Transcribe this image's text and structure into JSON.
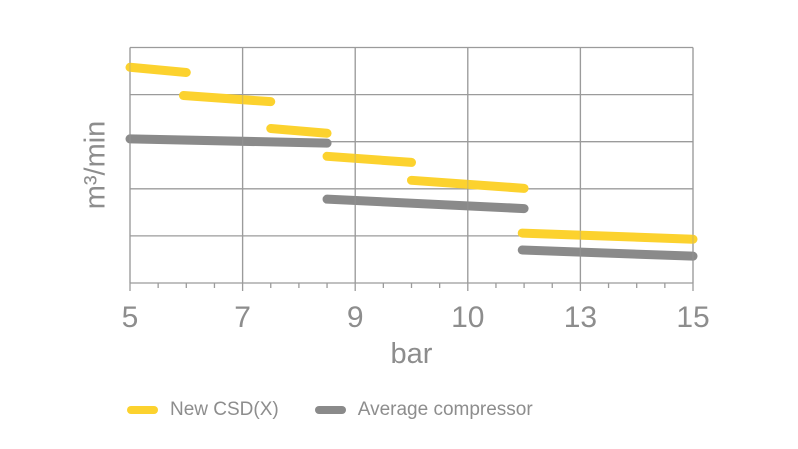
{
  "chart_data": {
    "type": "line",
    "title": "",
    "xlabel": "bar",
    "ylabel": "m³/min",
    "x_tick_labels": [
      "5",
      "7",
      "9",
      "10",
      "13",
      "15"
    ],
    "x_tick_values": [
      5,
      7,
      9,
      10,
      13,
      15
    ],
    "x_minor_divisions": 4,
    "y_gridline_rows": 5,
    "y_axis_numeric_labels": false,
    "y_units_note": "y values are in unlabeled gridline units, 0 = bottom axis, 5 = top border",
    "grid": true,
    "legend_position": "bottom",
    "colors": {
      "background": "#ffffff",
      "grid": "#9b9b9b",
      "text": "#8d8d8d",
      "accent_yellow": "#FCD22E",
      "series_gray": "#8a8a8a"
    },
    "series": [
      {
        "name": "New CSD(X)",
        "color": "#FCD22E",
        "segments": [
          {
            "x": [
              5.0,
              6.0
            ],
            "y": [
              4.58,
              4.47
            ]
          },
          {
            "x": [
              5.95,
              7.5
            ],
            "y": [
              3.98,
              3.85
            ]
          },
          {
            "x": [
              7.5,
              8.5
            ],
            "y": [
              3.28,
              3.18
            ]
          },
          {
            "x": [
              8.5,
              9.5
            ],
            "y": [
              2.69,
              2.56
            ]
          },
          {
            "x": [
              9.5,
              11.5
            ],
            "y": [
              2.18,
              2.01
            ]
          },
          {
            "x": [
              11.45,
              15.0
            ],
            "y": [
              1.06,
              0.93
            ]
          }
        ]
      },
      {
        "name": "Average compressor",
        "color": "#8a8a8a",
        "segments": [
          {
            "x": [
              5.0,
              8.5
            ],
            "y": [
              3.06,
              2.97
            ]
          },
          {
            "x": [
              8.5,
              11.5
            ],
            "y": [
              1.78,
              1.58
            ]
          },
          {
            "x": [
              11.45,
              15.0
            ],
            "y": [
              0.7,
              0.57
            ]
          }
        ]
      }
    ],
    "legend": {
      "items": [
        {
          "label": "New CSD(X)",
          "color": "#FCD22E"
        },
        {
          "label": "Average compressor",
          "color": "#8a8a8a"
        }
      ]
    }
  }
}
